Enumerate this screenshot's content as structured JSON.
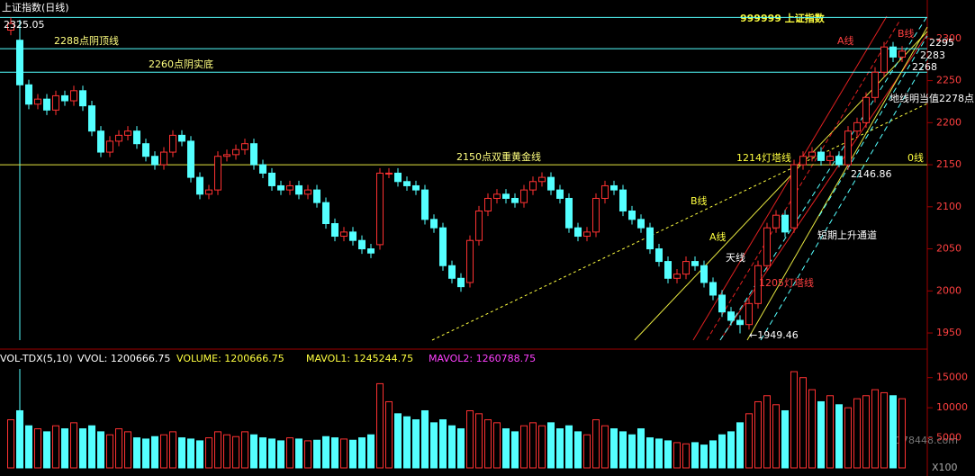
{
  "chart_data": {
    "type": "candlestick",
    "title": "上证指数(日线)",
    "code_title": "999999 上证指数",
    "open": [
      2310,
      2298,
      2245,
      2222,
      2228,
      2215,
      2232,
      2226,
      2238,
      2220,
      2190,
      2165,
      2178,
      2185,
      2190,
      2175,
      2160,
      2150,
      2165,
      2185,
      2178,
      2135,
      2115,
      2120,
      2160,
      2162,
      2168,
      2175,
      2150,
      2140,
      2125,
      2120,
      2125,
      2115,
      2120,
      2105,
      2080,
      2065,
      2070,
      2060,
      2050,
      2055,
      2140,
      2140,
      2130,
      2125,
      2120,
      2085,
      2075,
      2030,
      2015,
      2010,
      2060,
      2095,
      2110,
      2115,
      2110,
      2105,
      2120,
      2130,
      2135,
      2120,
      2110,
      2075,
      2065,
      2070,
      2110,
      2125,
      2120,
      2095,
      2085,
      2075,
      2050,
      2035,
      2015,
      2020,
      2035,
      2030,
      2010,
      1995,
      1975,
      1965,
      1960,
      1985,
      2030,
      2075,
      2090,
      2075,
      2150,
      2160,
      2165,
      2155,
      2160,
      2150,
      2190,
      2200,
      2230,
      2260,
      2290,
      2278
    ],
    "high": [
      2325.05,
      2304,
      2251,
      2234,
      2234,
      2238,
      2238,
      2244,
      2244,
      2226,
      2196,
      2184,
      2191,
      2196,
      2196,
      2181,
      2166,
      2171,
      2191,
      2191,
      2184,
      2141,
      2126,
      2166,
      2168,
      2174,
      2181,
      2181,
      2156,
      2146,
      2131,
      2131,
      2131,
      2126,
      2126,
      2111,
      2086,
      2076,
      2076,
      2066,
      2056,
      2146,
      2146,
      2146,
      2136,
      2131,
      2126,
      2091,
      2081,
      2036,
      2021,
      2066,
      2101,
      2116,
      2121,
      2121,
      2116,
      2126,
      2136,
      2141,
      2141,
      2126,
      2116,
      2081,
      2076,
      2116,
      2131,
      2131,
      2126,
      2101,
      2091,
      2081,
      2056,
      2041,
      2026,
      2041,
      2041,
      2036,
      2016,
      2001,
      1981,
      1971,
      1991,
      2036,
      2081,
      2096,
      2096,
      2156,
      2166,
      2171,
      2171,
      2166,
      2166,
      2196,
      2206,
      2236,
      2266,
      2296,
      2296,
      2291
    ],
    "low": [
      2304,
      2239,
      2216,
      2216,
      2209,
      2209,
      2220,
      2220,
      2214,
      2184,
      2159,
      2159,
      2172,
      2179,
      2169,
      2154,
      2144,
      2144,
      2159,
      2172,
      2129,
      2109,
      2109,
      2114,
      2154,
      2156,
      2162,
      2144,
      2134,
      2119,
      2114,
      2114,
      2109,
      2109,
      2099,
      2074,
      2059,
      2059,
      2054,
      2044,
      2039,
      2049,
      2134,
      2124,
      2119,
      2114,
      2079,
      2069,
      2024,
      2009,
      1999,
      2004,
      2054,
      2089,
      2104,
      2104,
      2099,
      2099,
      2114,
      2124,
      2114,
      2104,
      2069,
      2059,
      2059,
      2064,
      2104,
      2114,
      2089,
      2079,
      2069,
      2044,
      2029,
      2009,
      2009,
      2014,
      2024,
      2004,
      1989,
      1969,
      1959,
      1949.46,
      1954,
      1979,
      2024,
      2069,
      2064,
      2069,
      2144,
      2154,
      2149,
      2149,
      2146.86,
      2144,
      2184,
      2194,
      2224,
      2254,
      2272,
      2272
    ],
    "close": [
      2318,
      2245,
      2222,
      2228,
      2215,
      2232,
      2226,
      2238,
      2220,
      2190,
      2165,
      2178,
      2185,
      2190,
      2175,
      2160,
      2150,
      2165,
      2185,
      2178,
      2135,
      2115,
      2120,
      2160,
      2162,
      2168,
      2175,
      2150,
      2140,
      2125,
      2120,
      2125,
      2115,
      2120,
      2105,
      2080,
      2065,
      2070,
      2060,
      2050,
      2045,
      2140,
      2140,
      2130,
      2125,
      2120,
      2085,
      2075,
      2030,
      2015,
      2005,
      2060,
      2095,
      2110,
      2115,
      2110,
      2105,
      2120,
      2130,
      2135,
      2120,
      2110,
      2075,
      2065,
      2070,
      2110,
      2125,
      2120,
      2095,
      2085,
      2075,
      2050,
      2035,
      2015,
      2020,
      2035,
      2030,
      2010,
      1995,
      1975,
      1965,
      1960,
      1985,
      2030,
      2075,
      2090,
      2070,
      2150,
      2160,
      2165,
      2155,
      2160,
      2150,
      2190,
      2200,
      2230,
      2260,
      2290,
      2278,
      2285
    ],
    "volume": [
      8000,
      9500,
      7000,
      6500,
      6000,
      7000,
      6500,
      7500,
      6500,
      7000,
      6000,
      5500,
      6500,
      6000,
      5000,
      4800,
      5200,
      5500,
      6000,
      5000,
      4800,
      4500,
      5000,
      6000,
      5500,
      5200,
      6000,
      5500,
      5000,
      4800,
      4500,
      5000,
      4800,
      4500,
      4600,
      5200,
      5000,
      4800,
      4600,
      5000,
      5500,
      14000,
      11000,
      9000,
      8500,
      8000,
      9500,
      7500,
      8000,
      7000,
      6500,
      9500,
      9000,
      8000,
      7500,
      6500,
      6000,
      7000,
      7500,
      7000,
      7500,
      6500,
      7000,
      6000,
      5500,
      8000,
      7000,
      6500,
      6000,
      5500,
      6500,
      5000,
      4800,
      4500,
      4200,
      4000,
      4200,
      3800,
      4500,
      5500,
      6000,
      7500,
      9000,
      11000,
      12000,
      10500,
      9500,
      16000,
      15000,
      13000,
      11000,
      12000,
      10500,
      10000,
      11500,
      12000,
      13000,
      12500,
      12000,
      11500
    ],
    "up_color": "#ff3232",
    "down_color": "#54ffff",
    "ylim": [
      1934,
      2333
    ],
    "yticks": [
      1950,
      2000,
      2050,
      2100,
      2150,
      2200,
      2250,
      2300
    ],
    "vol_ylim": [
      0,
      17200
    ],
    "vol_yticks": [
      5000,
      10000,
      15000
    ],
    "levels": [
      {
        "value": 2288,
        "label": "2288点阴顶线"
      },
      {
        "value": 2260,
        "label": "2260点阴实底"
      },
      {
        "value": 2150,
        "label": "2150点双重黄金线"
      }
    ],
    "annotations": [
      "2325.05",
      "A线",
      "B线",
      "2295",
      "2283",
      "2268",
      "地线明当值2278点",
      "0线",
      "1214灯塔线",
      "2146.86",
      "B线",
      "A线",
      "天线",
      "短期上升通道",
      "1205灯塔线",
      "←1949.46"
    ],
    "vol_header": [
      "VOL-TDX(5,10)",
      "VVOL: 1200666.75",
      "VOLUME: 1200666.75",
      "MAVOL1: 1245244.75",
      "MAVOL2: 1260788.75"
    ],
    "watermark": "178448.com",
    "scale_note": "X100"
  }
}
